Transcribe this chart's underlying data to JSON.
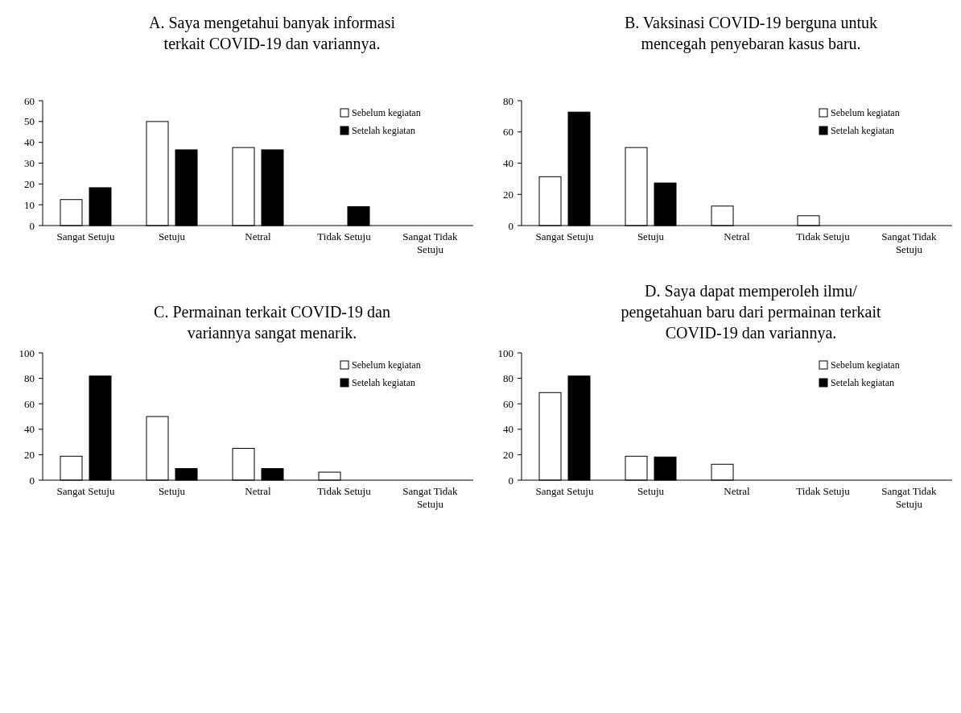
{
  "chart_data": [
    {
      "type": "bar",
      "title": "A.  Saya mengetahui banyak informasi\nterkait COVID-19 dan variannya.",
      "categories": [
        "Sangat Setuju",
        "Setuju",
        "Netral",
        "Tidak Setuju",
        "Sangat Tidak Setuju"
      ],
      "series": [
        {
          "name": "Sebelum kegiatan",
          "color": "#ffffff",
          "values": [
            12.5,
            50,
            37.5,
            0,
            0
          ]
        },
        {
          "name": "Setelah kegiatan",
          "color": "#000000",
          "values": [
            18.2,
            36.4,
            36.4,
            9.1,
            0
          ]
        }
      ],
      "ylim": [
        0,
        60
      ],
      "yticks": [
        0,
        10,
        20,
        30,
        40,
        50,
        60
      ],
      "grid": false,
      "legend": "top right"
    },
    {
      "type": "bar",
      "title": "B.  Vaksinasi COVID-19 berguna untuk\nmencegah penyebaran kasus baru.",
      "categories": [
        "Sangat Setuju",
        "Setuju",
        "Netral",
        "Tidak Setuju",
        "Sangat Tidak Setuju"
      ],
      "series": [
        {
          "name": "Sebelum kegiatan",
          "color": "#ffffff",
          "values": [
            31.3,
            50,
            12.5,
            6.3,
            0
          ]
        },
        {
          "name": "Setelah kegiatan",
          "color": "#000000",
          "values": [
            72.7,
            27.3,
            0,
            0,
            0
          ]
        }
      ],
      "ylim": [
        0,
        80
      ],
      "yticks": [
        0,
        20,
        40,
        60,
        80
      ],
      "grid": false,
      "legend": "top right"
    },
    {
      "type": "bar",
      "title": "C.  Permainan terkait COVID-19 dan\nvariannya sangat menarik.",
      "categories": [
        "Sangat Setuju",
        "Setuju",
        "Netral",
        "Tidak Setuju",
        "Sangat Tidak Setuju"
      ],
      "series": [
        {
          "name": "Sebelum kegiatan",
          "color": "#ffffff",
          "values": [
            18.8,
            50,
            25,
            6.3,
            0
          ]
        },
        {
          "name": "Setelah kegiatan",
          "color": "#000000",
          "values": [
            81.8,
            9.1,
            9.1,
            0,
            0
          ]
        }
      ],
      "ylim": [
        0,
        100
      ],
      "yticks": [
        0,
        20,
        40,
        60,
        80,
        100
      ],
      "grid": false,
      "legend": "top right"
    },
    {
      "type": "bar",
      "title": "D.  Saya dapat memperoleh ilmu/\npengetahuan baru dari permainan terkait\nCOVID-19 dan variannya.",
      "categories": [
        "Sangat Setuju",
        "Setuju",
        "Netral",
        "Tidak Setuju",
        "Sangat Tidak Setuju"
      ],
      "series": [
        {
          "name": "Sebelum kegiatan",
          "color": "#ffffff",
          "values": [
            68.8,
            18.8,
            12.5,
            0,
            0
          ]
        },
        {
          "name": "Setelah kegiatan",
          "color": "#000000",
          "values": [
            81.8,
            18.2,
            0,
            0,
            0
          ]
        }
      ],
      "ylim": [
        0,
        100
      ],
      "yticks": [
        0,
        20,
        40,
        60,
        80,
        100
      ],
      "grid": false,
      "legend": "top right"
    }
  ]
}
